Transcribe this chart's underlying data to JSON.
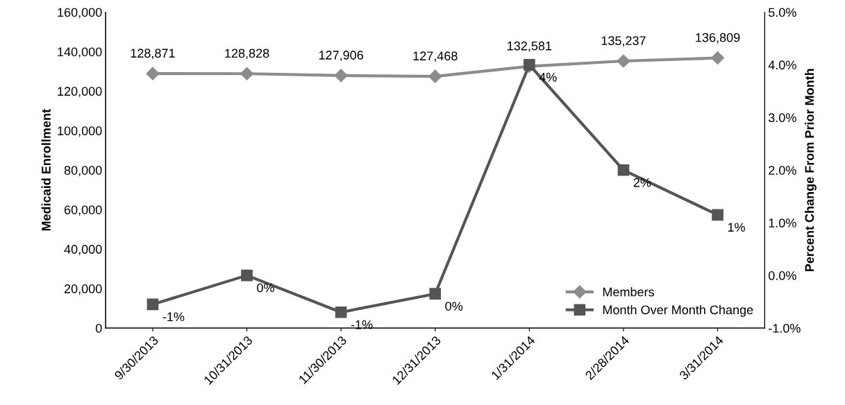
{
  "chart_data": {
    "type": "line",
    "categories": [
      "9/30/2013",
      "10/31/2013",
      "11/30/2013",
      "12/31/2013",
      "1/31/2014",
      "2/28/2014",
      "3/31/2014"
    ],
    "ylabel": "Medicaid Enrollment",
    "y2label": "Percent Change From Prior Month",
    "ylim": [
      0,
      160000
    ],
    "yticks": [
      {
        "value": 0,
        "label": "0"
      },
      {
        "value": 20000,
        "label": "20,000"
      },
      {
        "value": 40000,
        "label": "40,000"
      },
      {
        "value": 60000,
        "label": "60,000"
      },
      {
        "value": 80000,
        "label": "80,000"
      },
      {
        "value": 100000,
        "label": "100,000"
      },
      {
        "value": 120000,
        "label": "120,000"
      },
      {
        "value": 140000,
        "label": "140,000"
      },
      {
        "value": 160000,
        "label": "160,000"
      }
    ],
    "y2lim": [
      -1,
      5
    ],
    "y2ticks": [
      {
        "value": -1,
        "label": "-1.0%"
      },
      {
        "value": 0,
        "label": "0.0%"
      },
      {
        "value": 1,
        "label": "1.0%"
      },
      {
        "value": 2,
        "label": "2.0%"
      },
      {
        "value": 3,
        "label": "3.0%"
      },
      {
        "value": 4,
        "label": "4.0%"
      },
      {
        "value": 5,
        "label": "5.0%"
      }
    ],
    "grid": false,
    "legend": "bottom right",
    "series": [
      {
        "name": "Members",
        "color": "#8c8c8c",
        "marker": "diamond",
        "values": [
          128871,
          128828,
          127906,
          127468,
          132581,
          135237,
          136809
        ],
        "value_labels": [
          "128,871",
          "128,828",
          "127,906",
          "127,468",
          "132,581",
          "135,237",
          "136,809"
        ]
      },
      {
        "name": "Month Over Month Change",
        "color": "#555555",
        "marker": "square",
        "axis": "y2",
        "values": [
          -0.55,
          0.0,
          -0.7,
          -0.35,
          4.0,
          2.0,
          1.15
        ],
        "value_labels": [
          "-1%",
          "0%",
          "-1%",
          "0%",
          "4%",
          "2%",
          "1%"
        ]
      }
    ]
  }
}
